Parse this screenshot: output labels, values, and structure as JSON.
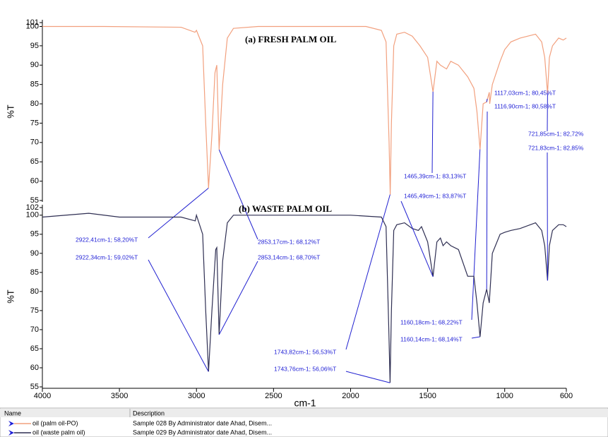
{
  "chart_data": [
    {
      "type": "line",
      "title": "(a)  FRESH PALM OIL",
      "ylabel": "%T",
      "xlim": [
        4000,
        600
      ],
      "ylim": [
        55,
        101
      ],
      "yticks": [
        55,
        60,
        65,
        70,
        75,
        80,
        85,
        90,
        95,
        100,
        101
      ],
      "series": [
        {
          "name": "oil (palm oil-PO)",
          "description": "Sample 028 By Administrator date Ahad, Disem...",
          "color": "#f2a07e",
          "x": [
            4000,
            3600,
            3100,
            3010,
            3000,
            2960,
            2940,
            2922,
            2900,
            2880,
            2868,
            2853,
            2830,
            2800,
            2760,
            2600,
            2200,
            1900,
            1800,
            1770,
            1750,
            1743,
            1735,
            1720,
            1700,
            1650,
            1600,
            1550,
            1500,
            1465,
            1440,
            1417,
            1377,
            1350,
            1300,
            1240,
            1200,
            1180,
            1160,
            1140,
            1117,
            1100,
            1097,
            1080,
            1030,
            1000,
            960,
            900,
            800,
            760,
            740,
            722,
            710,
            690,
            650,
            620,
            600
          ],
          "values": [
            100,
            100,
            99.8,
            98.5,
            99,
            95,
            75,
            58.2,
            72,
            88,
            90,
            68.1,
            85,
            97,
            99.5,
            100,
            100,
            100,
            99,
            96,
            70,
            56.5,
            75,
            95,
            98,
            98.5,
            97.5,
            95,
            92,
            83.1,
            91,
            90,
            89,
            91,
            90,
            87,
            84,
            78,
            68.2,
            80,
            80.5,
            83,
            80,
            85,
            91,
            94,
            96,
            97,
            98,
            96,
            92,
            82.7,
            92,
            95,
            97,
            96.5,
            97
          ]
        }
      ],
      "annotations": [
        {
          "label": "2922,41cm-1; 58,20%T",
          "x": 2922.41,
          "y": 58.2
        },
        {
          "label": "2853,17cm-1; 68,12%T",
          "x": 2853.17,
          "y": 68.12
        },
        {
          "label": "1465,39cm-1; 83,13%T",
          "x": 1465.39,
          "y": 83.13
        },
        {
          "label": "1743,82cm-1; 56,53%T",
          "x": 1743.82,
          "y": 56.53
        },
        {
          "label": "1160,18cm-1; 68,22%T",
          "x": 1160.18,
          "y": 68.22
        },
        {
          "label": "1117,03cm-1; 80,45%T",
          "x": 1117.03,
          "y": 80.45
        },
        {
          "label": "721,85cm-1; 82,72%",
          "x": 721.85,
          "y": 82.72
        }
      ]
    },
    {
      "type": "line",
      "title": "(b)  WASTE PALM OIL",
      "ylabel": "%T",
      "xlabel": "cm-1",
      "xlim": [
        4000,
        600
      ],
      "xticks": [
        4000,
        3500,
        3000,
        2500,
        2000,
        1500,
        1000,
        600
      ],
      "ylim": [
        55,
        102
      ],
      "yticks": [
        55,
        60,
        65,
        70,
        75,
        80,
        85,
        90,
        95,
        100,
        102
      ],
      "series": [
        {
          "name": "oil (waste palm oil)",
          "description": "Sample 029 By Administrator date Ahad, Disem...",
          "color": "#2e2e52",
          "x": [
            4000,
            3700,
            3500,
            3100,
            3008,
            3000,
            2960,
            2940,
            2922,
            2900,
            2875,
            2868,
            2853,
            2830,
            2800,
            2760,
            2600,
            2000,
            1800,
            1770,
            1752,
            1743.8,
            1735,
            1720,
            1700,
            1650,
            1600,
            1560,
            1540,
            1500,
            1465,
            1440,
            1417,
            1400,
            1377,
            1350,
            1300,
            1240,
            1200,
            1180,
            1160,
            1140,
            1117,
            1100,
            1080,
            1030,
            1000,
            960,
            900,
            800,
            760,
            740,
            722,
            710,
            690,
            650,
            620,
            600
          ],
          "values": [
            99.5,
            100.5,
            99.5,
            99.5,
            98.5,
            100,
            95,
            75,
            59,
            75,
            91,
            91.5,
            68.7,
            88,
            98,
            100,
            100,
            100,
            99.5,
            97,
            70,
            56.1,
            75,
            96,
            97.5,
            98,
            96.5,
            96,
            97,
            93,
            83.9,
            93,
            94,
            92,
            93,
            92,
            91,
            84,
            84,
            77,
            68.1,
            77,
            80.6,
            77,
            90,
            95,
            95.5,
            96,
            96.5,
            98,
            96,
            92,
            82.9,
            92,
            96,
            97.5,
            97.5,
            97
          ]
        }
      ],
      "annotations": [
        {
          "label": "2922,34cm-1; 59,02%T",
          "x": 2922.34,
          "y": 59.02
        },
        {
          "label": "2853,14cm-1; 68,70%T",
          "x": 2853.14,
          "y": 68.7
        },
        {
          "label": "1465,49cm-1; 83,87%T",
          "x": 1465.49,
          "y": 83.87
        },
        {
          "label": "1743,76cm-1; 56,06%T",
          "x": 1743.76,
          "y": 56.06
        },
        {
          "label": "1160,14cm-1; 68,14%T",
          "x": 1160.14,
          "y": 68.14
        },
        {
          "label": "1116,90cm-1; 80,58%T",
          "x": 1116.9,
          "y": 80.58
        },
        {
          "label": "721,83cm-1; 82,85%",
          "x": 721.83,
          "y": 82.85
        }
      ]
    }
  ],
  "legend_headers": [
    "Name",
    "Description"
  ]
}
